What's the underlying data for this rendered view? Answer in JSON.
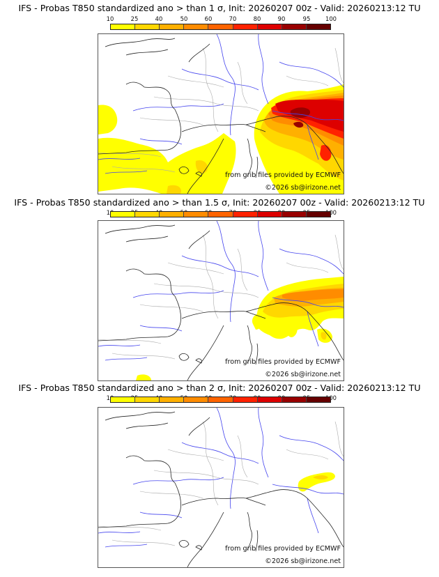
{
  "colorbar": {
    "ticks": [
      "10",
      "25",
      "40",
      "50",
      "60",
      "70",
      "80",
      "90",
      "95",
      "100"
    ],
    "colors": [
      "#ffff00",
      "#ffd700",
      "#ffb000",
      "#ff8c00",
      "#ff6400",
      "#ff2200",
      "#dd0000",
      "#990000",
      "#660000"
    ]
  },
  "panels": [
    {
      "title": "IFS - Probas T850  standardized ano > than 1 σ, Init: 20260207 00z - Valid: 20260213:12 TU",
      "source_credit": "from grib files provided by ECMWF",
      "copyright": "©2026 sb@irizone.net"
    },
    {
      "title": "IFS - Probas T850  standardized ano > than 1.5 σ, Init: 20260207 00z - Valid: 20260213:12 TU",
      "source_credit": "from grib files provided by ECMWF",
      "copyright": "©2026 sb@irizone.net"
    },
    {
      "title": "IFS - Probas T850  standardized ano > than 2 σ, Init: 20260207 00z - Valid: 20260213:12 TU",
      "source_credit": "from grib files provided by ECMWF",
      "copyright": "©2026 sb@irizone.net"
    }
  ]
}
